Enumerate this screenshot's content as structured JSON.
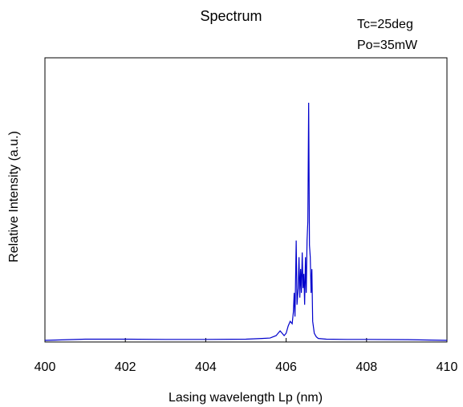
{
  "chart_data": {
    "type": "line",
    "title": "Spectrum",
    "annotations": [
      "Tc=25deg",
      "Po=35mW"
    ],
    "xlabel": "Lasing wavelength Lp (nm)",
    "ylabel": "Relative Intensity (a.u.)",
    "xlim": [
      400,
      410
    ],
    "ylim": [
      0,
      1.0
    ],
    "xticks": [
      400,
      402,
      404,
      406,
      408,
      410
    ],
    "xtick_labels": [
      "400",
      "402",
      "404",
      "406",
      "408",
      "410"
    ],
    "y_tick_labels_shown": false,
    "grid": false,
    "series": [
      {
        "color": "#0000cc",
        "x": [
          400.0,
          401.0,
          402.0,
          403.0,
          404.0,
          405.0,
          405.4,
          405.6,
          405.75,
          405.85,
          405.9,
          405.95,
          406.0,
          406.05,
          406.1,
          406.15,
          406.18,
          406.2,
          406.22,
          406.25,
          406.27,
          406.3,
          406.32,
          406.34,
          406.36,
          406.38,
          406.4,
          406.42,
          406.44,
          406.46,
          406.48,
          406.5,
          406.52,
          406.54,
          406.56,
          406.58,
          406.6,
          406.62,
          406.64,
          406.66,
          406.7,
          406.75,
          406.8,
          407.0,
          407.5,
          408.0,
          409.0,
          410.0
        ],
        "y": [
          0.0,
          0.005,
          0.005,
          0.004,
          0.004,
          0.005,
          0.008,
          0.01,
          0.02,
          0.04,
          0.03,
          0.02,
          0.03,
          0.06,
          0.08,
          0.07,
          0.12,
          0.2,
          0.1,
          0.42,
          0.15,
          0.22,
          0.35,
          0.18,
          0.3,
          0.2,
          0.37,
          0.22,
          0.28,
          0.15,
          0.35,
          0.2,
          0.42,
          0.5,
          1.0,
          0.4,
          0.35,
          0.2,
          0.3,
          0.08,
          0.03,
          0.015,
          0.008,
          0.005,
          0.004,
          0.004,
          0.003,
          0.0
        ]
      }
    ]
  }
}
